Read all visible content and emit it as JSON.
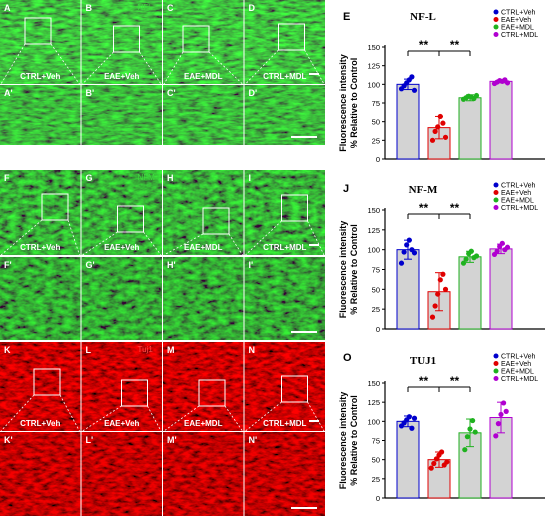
{
  "micrographs": [
    {
      "stain": "NFL",
      "stain_color": "#3fd93f",
      "top": [
        {
          "letter": "A",
          "label": "CTRL+Veh"
        },
        {
          "letter": "B",
          "label": "EAE+Veh"
        },
        {
          "letter": "C",
          "label": "EAE+MDL"
        },
        {
          "letter": "D",
          "label": "CTRL+MDL"
        }
      ],
      "bottom_letters": [
        "A'",
        "B'",
        "C'",
        "D'"
      ]
    },
    {
      "stain": "NFM",
      "stain_color": "#3fd93f",
      "top": [
        {
          "letter": "F",
          "label": "CTRL+Veh"
        },
        {
          "letter": "G",
          "label": "EAE+Veh"
        },
        {
          "letter": "H",
          "label": "EAE+MDL"
        },
        {
          "letter": "I",
          "label": "CTRL+MDL"
        }
      ],
      "bottom_letters": [
        "F'",
        "G'",
        "H'",
        "I'"
      ]
    },
    {
      "stain": "Tuj1",
      "stain_color": "#ff4a4a",
      "top": [
        {
          "letter": "K",
          "label": "CTRL+Veh"
        },
        {
          "letter": "L",
          "label": "EAE+Veh"
        },
        {
          "letter": "M",
          "label": "EAE+MDL"
        },
        {
          "letter": "N",
          "label": "CTRL+MDL"
        }
      ],
      "bottom_letters": [
        "K'",
        "L'",
        "M'",
        "N'"
      ]
    }
  ],
  "chart_data": [
    {
      "panel": "E",
      "type": "bar",
      "title": "NF-L",
      "ylabel": [
        "Fluorescence intensity",
        "% Relative to Control"
      ],
      "ylim": [
        0,
        150
      ],
      "yticks": [
        0,
        25,
        50,
        75,
        100,
        125,
        150
      ],
      "categories": [
        "CTRL+Veh",
        "EAE+Veh",
        "EAE+MDL",
        "CTRL+MDL"
      ],
      "colors": [
        "#0000cc",
        "#e00000",
        "#1fb21f",
        "#b000d0"
      ],
      "values": [
        100,
        42,
        82,
        104
      ],
      "errors": [
        7,
        15,
        4,
        2
      ],
      "points": [
        [
          94,
          98,
          102,
          106,
          110,
          92
        ],
        [
          25,
          37,
          43,
          57,
          48,
          29
        ],
        [
          80,
          82,
          84,
          83,
          81,
          85
        ],
        [
          101,
          103,
          105,
          104,
          106,
          102
        ]
      ],
      "significance": [
        {
          "from": 0,
          "to": 1,
          "label": "**"
        },
        {
          "from": 1,
          "to": 2,
          "label": "**"
        }
      ],
      "legend": [
        "CTRL+Veh",
        "EAE+Veh",
        "EAE+MDL",
        "CTRL+MDL"
      ]
    },
    {
      "panel": "J",
      "type": "bar",
      "title": "NF-M",
      "ylabel": [
        "Fluorescence intensity",
        "% Relative to Control"
      ],
      "ylim": [
        0,
        150
      ],
      "yticks": [
        0,
        25,
        50,
        75,
        100,
        125,
        150
      ],
      "categories": [
        "CTRL+Veh",
        "EAE+Veh",
        "EAE+MDL",
        "CTRL+MDL"
      ],
      "colors": [
        "#0000cc",
        "#e00000",
        "#1fb21f",
        "#b000d0"
      ],
      "values": [
        100,
        47,
        91,
        101
      ],
      "errors": [
        12,
        24,
        7,
        6
      ],
      "points": [
        [
          83,
          97,
          106,
          112,
          100,
          96
        ],
        [
          15,
          29,
          44,
          62,
          69,
          50
        ],
        [
          83,
          88,
          95,
          98,
          90,
          92
        ],
        [
          94,
          98,
          104,
          108,
          100,
          103
        ]
      ],
      "significance": [
        {
          "from": 0,
          "to": 1,
          "label": "**"
        },
        {
          "from": 1,
          "to": 2,
          "label": "**"
        }
      ],
      "legend": [
        "CTRL+Veh",
        "EAE+Veh",
        "EAE+MDL",
        "CTRL+MDL"
      ]
    },
    {
      "panel": "O",
      "type": "bar",
      "title": "TUJ1",
      "ylabel": [
        "Fluorescence intensity",
        "% Relative to Control"
      ],
      "ylim": [
        0,
        150
      ],
      "yticks": [
        0,
        25,
        50,
        75,
        100,
        125,
        150
      ],
      "categories": [
        "CTRL+Veh",
        "EAE+Veh",
        "EAE+MDL",
        "CTRL+MDL"
      ],
      "colors": [
        "#0000cc",
        "#e00000",
        "#1fb21f",
        "#b000d0"
      ],
      "values": [
        100,
        50,
        85,
        105
      ],
      "errors": [
        7,
        10,
        18,
        20
      ],
      "points": [
        [
          94,
          98,
          102,
          106,
          91,
          104
        ],
        [
          39,
          45,
          51,
          56,
          60,
          43,
          47
        ],
        [
          63,
          80,
          90,
          101,
          86
        ],
        [
          81,
          97,
          109,
          124,
          113
        ]
      ],
      "significance": [
        {
          "from": 0,
          "to": 1,
          "label": "**"
        },
        {
          "from": 1,
          "to": 2,
          "label": "**"
        }
      ],
      "legend": [
        "CTRL+Veh",
        "EAE+Veh",
        "EAE+MDL",
        "CTRL+MDL"
      ]
    }
  ]
}
